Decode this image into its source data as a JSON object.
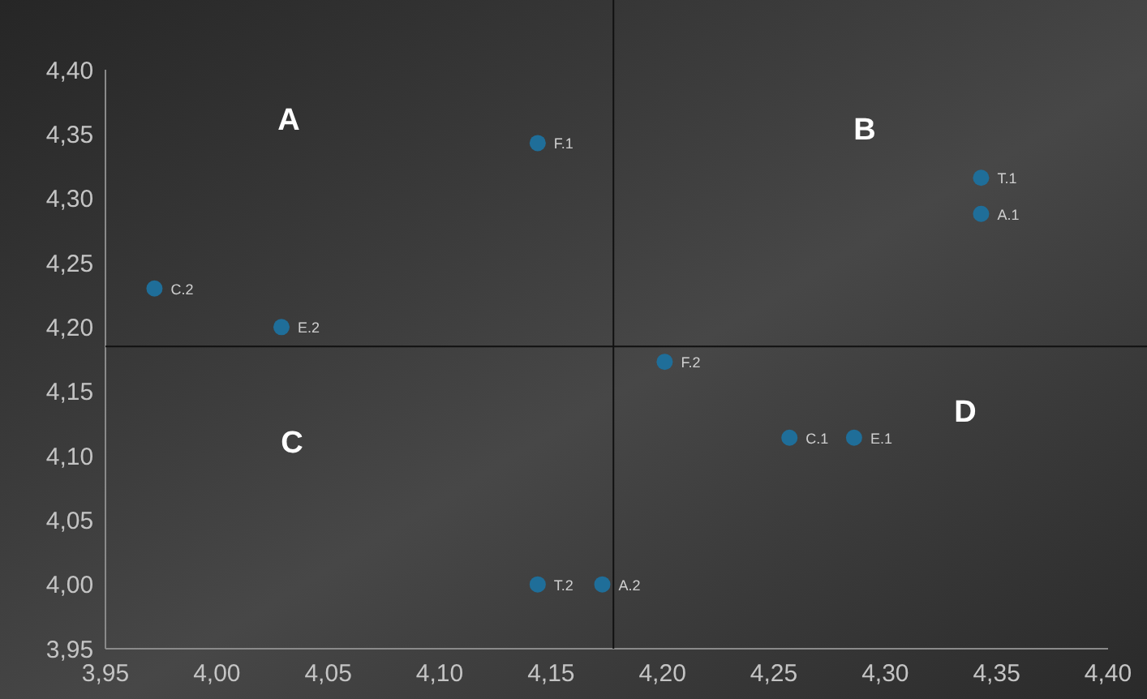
{
  "chart_data": {
    "type": "scatter",
    "xlim": [
      3.95,
      4.4
    ],
    "xticks": [
      {
        "value": 3.95,
        "label": "3,95"
      },
      {
        "value": 4.0,
        "label": "4,00"
      },
      {
        "value": 4.05,
        "label": "4,05"
      },
      {
        "value": 4.1,
        "label": "4,10"
      },
      {
        "value": 4.15,
        "label": "4,15"
      },
      {
        "value": 4.2,
        "label": "4,20"
      },
      {
        "value": 4.25,
        "label": "4,25"
      },
      {
        "value": 4.3,
        "label": "4,30"
      },
      {
        "value": 4.35,
        "label": "4,35"
      },
      {
        "value": 4.4,
        "label": "4,40"
      }
    ],
    "ylim": [
      3.95,
      4.4
    ],
    "yticks": [
      {
        "value": 3.95,
        "label": "3,95"
      },
      {
        "value": 4.0,
        "label": "4,00"
      },
      {
        "value": 4.05,
        "label": "4,05"
      },
      {
        "value": 4.1,
        "label": "4,10"
      },
      {
        "value": 4.15,
        "label": "4,15"
      },
      {
        "value": 4.2,
        "label": "4,20"
      },
      {
        "value": 4.25,
        "label": "4,25"
      },
      {
        "value": 4.3,
        "label": "4,30"
      },
      {
        "value": 4.35,
        "label": "4,35"
      },
      {
        "value": 4.4,
        "label": "4,40"
      }
    ],
    "grid": false,
    "marker": "circle",
    "ref_lines": [
      {
        "axis": "x",
        "value": 4.178,
        "color": "#111111"
      },
      {
        "axis": "y",
        "value": 4.185,
        "color": "#111111"
      }
    ],
    "annotations": [
      "A",
      "B",
      "C",
      "D"
    ],
    "series": [
      {
        "name": "F.1",
        "color": "#1f6e99",
        "x": [
          4.144
        ],
        "values": [
          4.343
        ]
      },
      {
        "name": "T.1",
        "color": "#1f6e99",
        "x": [
          4.343
        ],
        "values": [
          4.316
        ]
      },
      {
        "name": "A.1",
        "color": "#1f6e99",
        "x": [
          4.343
        ],
        "values": [
          4.288
        ]
      },
      {
        "name": "C.2",
        "color": "#1f6e99",
        "x": [
          3.972
        ],
        "values": [
          4.23
        ]
      },
      {
        "name": "E.2",
        "color": "#1f6e99",
        "x": [
          4.029
        ],
        "values": [
          4.2
        ]
      },
      {
        "name": "F.2",
        "color": "#1f6e99",
        "x": [
          4.201
        ],
        "values": [
          4.173
        ]
      },
      {
        "name": "C.1",
        "color": "#1f6e99",
        "x": [
          4.257
        ],
        "values": [
          4.114
        ]
      },
      {
        "name": "E.1",
        "color": "#1f6e99",
        "x": [
          4.286
        ],
        "values": [
          4.114
        ]
      },
      {
        "name": "T.2",
        "color": "#1f6e99",
        "x": [
          4.144
        ],
        "values": [
          4.0
        ]
      },
      {
        "name": "A.2",
        "color": "#1f6e99",
        "x": [
          4.173
        ],
        "values": [
          4.0
        ]
      }
    ]
  }
}
